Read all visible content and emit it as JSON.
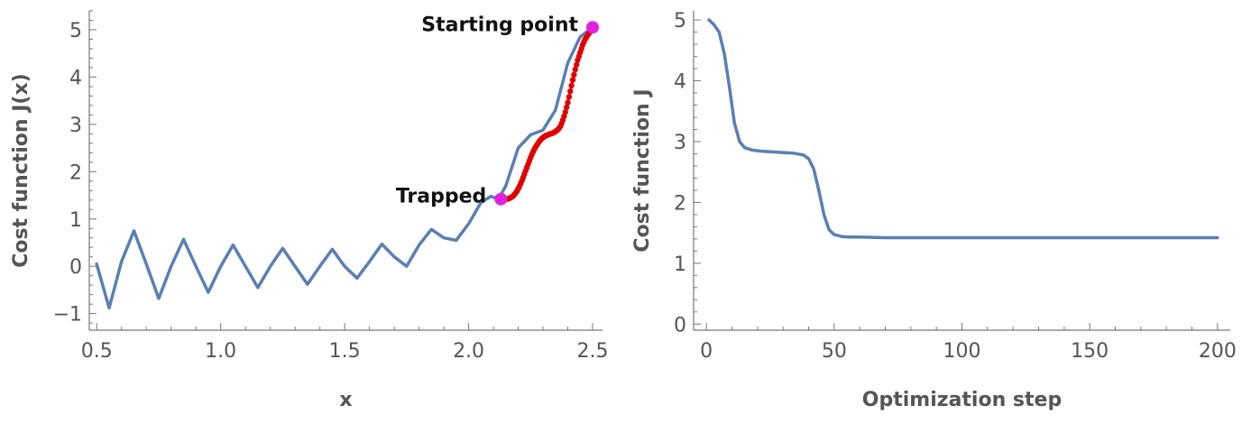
{
  "chart_data": [
    {
      "type": "line",
      "title": "",
      "xlabel": "x",
      "ylabel": "Cost function J(x)",
      "xlim": [
        0.47,
        2.54
      ],
      "ylim": [
        -1.35,
        5.4
      ],
      "xticks": [
        0.5,
        1.0,
        1.5,
        2.0,
        2.5
      ],
      "xtick_labels": [
        "0.5",
        "1.0",
        "1.5",
        "2.0",
        "2.5"
      ],
      "yticks": [
        -1,
        0,
        1,
        2,
        3,
        4,
        5
      ],
      "ytick_labels": [
        "−1",
        "0",
        "1",
        "2",
        "3",
        "4",
        "5"
      ],
      "series": [
        {
          "color": "#5b7fb4",
          "x": [
            0.5,
            0.55,
            0.6,
            0.65,
            0.7,
            0.75,
            0.8,
            0.85,
            0.9,
            0.95,
            1.0,
            1.05,
            1.1,
            1.15,
            1.2,
            1.25,
            1.3,
            1.35,
            1.4,
            1.45,
            1.5,
            1.55,
            1.6,
            1.65,
            1.7,
            1.75,
            1.8,
            1.85,
            1.9,
            1.95,
            2.0,
            2.05,
            2.09,
            2.12,
            2.15,
            2.2,
            2.25,
            2.3,
            2.35,
            2.4,
            2.45,
            2.5
          ],
          "y": [
            0.05,
            -0.88,
            0.1,
            0.75,
            0.05,
            -0.68,
            0.0,
            0.57,
            0.0,
            -0.55,
            0.0,
            0.45,
            0.0,
            -0.45,
            0.0,
            0.38,
            0.0,
            -0.38,
            0.0,
            0.36,
            0.0,
            -0.25,
            0.1,
            0.47,
            0.2,
            0.0,
            0.45,
            0.78,
            0.6,
            0.55,
            0.9,
            1.35,
            1.48,
            1.42,
            1.7,
            2.5,
            2.78,
            2.88,
            3.3,
            4.3,
            4.85,
            5.05
          ]
        },
        {
          "color": "#e00000",
          "marker": "dot",
          "x": [
            2.5,
            2.495,
            2.49,
            2.485,
            2.48,
            2.475,
            2.47,
            2.465,
            2.46,
            2.455,
            2.45,
            2.445,
            2.44,
            2.435,
            2.43,
            2.425,
            2.42,
            2.415,
            2.41,
            2.405,
            2.4,
            2.395,
            2.39,
            2.385,
            2.38,
            2.375,
            2.37,
            2.365,
            2.36,
            2.355,
            2.35,
            2.345,
            2.34,
            2.335,
            2.33,
            2.325,
            2.32,
            2.315,
            2.31,
            2.305,
            2.3,
            2.295,
            2.29,
            2.285,
            2.28,
            2.275,
            2.27,
            2.265,
            2.26,
            2.255,
            2.25,
            2.245,
            2.24,
            2.235,
            2.23,
            2.225,
            2.22,
            2.215,
            2.21,
            2.205,
            2.2,
            2.195,
            2.19,
            2.185,
            2.18,
            2.175,
            2.17,
            2.165,
            2.16,
            2.155,
            2.15,
            2.145,
            2.14,
            2.135,
            2.13
          ],
          "y": [
            5.05,
            5.0,
            4.96,
            4.92,
            4.88,
            4.84,
            4.8,
            4.74,
            4.68,
            4.6,
            4.52,
            4.44,
            4.36,
            4.26,
            4.16,
            4.05,
            3.94,
            3.82,
            3.7,
            3.58,
            3.46,
            3.36,
            3.26,
            3.17,
            3.09,
            3.02,
            2.96,
            2.92,
            2.89,
            2.87,
            2.85,
            2.83,
            2.82,
            2.81,
            2.8,
            2.79,
            2.78,
            2.77,
            2.76,
            2.74,
            2.72,
            2.7,
            2.67,
            2.64,
            2.6,
            2.56,
            2.52,
            2.47,
            2.42,
            2.36,
            2.3,
            2.23,
            2.16,
            2.09,
            2.02,
            1.95,
            1.88,
            1.81,
            1.75,
            1.69,
            1.64,
            1.59,
            1.55,
            1.52,
            1.49,
            1.47,
            1.45,
            1.44,
            1.43,
            1.42,
            1.42,
            1.42,
            1.42,
            1.42,
            1.42
          ]
        }
      ],
      "highlight_points": [
        {
          "x": 2.5,
          "y": 5.05,
          "color": "#e020e0"
        },
        {
          "x": 2.13,
          "y": 1.42,
          "color": "#e020e0"
        }
      ],
      "annotations": [
        {
          "text": "Starting point",
          "x": 2.5,
          "y": 5.05,
          "position": "left"
        },
        {
          "text": "Trapped",
          "x": 2.13,
          "y": 1.42,
          "position": "left"
        }
      ]
    },
    {
      "type": "line",
      "title": "",
      "xlabel": "Optimization step",
      "ylabel": "Cost function J",
      "xlim": [
        -5,
        205
      ],
      "ylim": [
        -0.1,
        5.15
      ],
      "xticks": [
        0,
        50,
        100,
        150,
        200
      ],
      "xtick_labels": [
        "0",
        "50",
        "100",
        "150",
        "200"
      ],
      "yticks": [
        0,
        1,
        2,
        3,
        4,
        5
      ],
      "ytick_labels": [
        "0",
        "1",
        "2",
        "3",
        "4",
        "5"
      ],
      "series": [
        {
          "color": "#5b7fb4",
          "x": [
            1,
            3,
            5,
            7,
            9,
            11,
            13,
            15,
            18,
            22,
            26,
            30,
            34,
            38,
            40,
            42,
            44,
            46,
            48,
            50,
            53,
            56,
            60,
            70,
            100,
            150,
            200
          ],
          "y": [
            5.0,
            4.92,
            4.8,
            4.45,
            3.9,
            3.3,
            3.0,
            2.9,
            2.86,
            2.84,
            2.83,
            2.82,
            2.81,
            2.78,
            2.72,
            2.55,
            2.2,
            1.8,
            1.55,
            1.47,
            1.44,
            1.43,
            1.43,
            1.42,
            1.42,
            1.42,
            1.42
          ]
        }
      ]
    }
  ]
}
